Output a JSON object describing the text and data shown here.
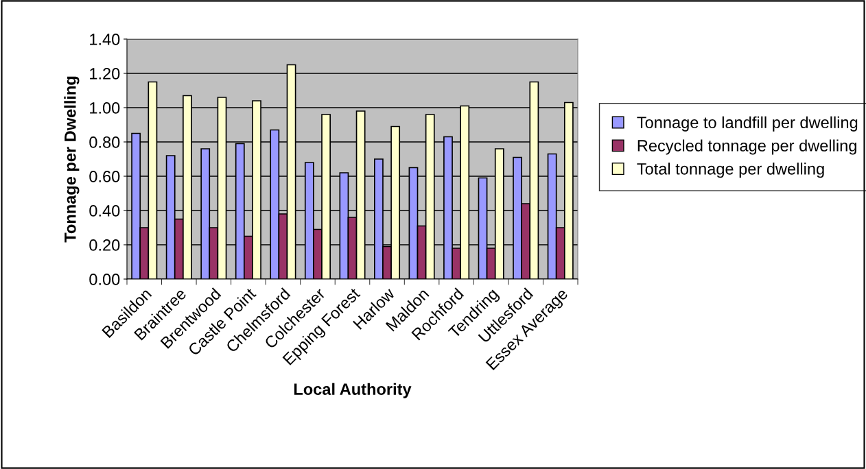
{
  "chart_data": {
    "type": "bar",
    "xlabel": "Local Authority",
    "ylabel": "Tonnage per Dwelling",
    "categories": [
      "Basildon",
      "Braintree",
      "Brentwood",
      "Castle Point",
      "Chelmsford",
      "Colchester",
      "Epping Forest",
      "Harlow",
      "Maldon",
      "Rochford",
      "Tendring",
      "Uttlesford",
      "Essex Average"
    ],
    "series": [
      {
        "name": "Tonnage to landfill per dwelling",
        "color": "#9999ff",
        "values": [
          0.85,
          0.72,
          0.76,
          0.79,
          0.87,
          0.68,
          0.62,
          0.7,
          0.65,
          0.83,
          0.59,
          0.71,
          0.73
        ]
      },
      {
        "name": "Recycled tonnage per dwelling",
        "color": "#993366",
        "values": [
          0.3,
          0.35,
          0.3,
          0.25,
          0.38,
          0.29,
          0.36,
          0.19,
          0.31,
          0.18,
          0.18,
          0.44,
          0.3
        ]
      },
      {
        "name": "Total tonnage per dwelling",
        "color": "#ffffcc",
        "values": [
          1.15,
          1.07,
          1.06,
          1.04,
          1.25,
          0.96,
          0.98,
          0.89,
          0.96,
          1.01,
          0.76,
          1.15,
          1.03
        ]
      }
    ],
    "ylim": [
      0,
      1.4
    ],
    "yticks": [
      {
        "value": 0,
        "label": "0.00"
      },
      {
        "value": 0.2,
        "label": "0.20"
      },
      {
        "value": 0.4,
        "label": "0.40"
      },
      {
        "value": 0.6,
        "label": "0.60"
      },
      {
        "value": 0.8,
        "label": "0.80"
      },
      {
        "value": 1.0,
        "label": "1.00"
      },
      {
        "value": 1.2,
        "label": "1.20"
      },
      {
        "value": 1.4,
        "label": "1.40"
      }
    ],
    "grid": "y",
    "legend": "right"
  }
}
